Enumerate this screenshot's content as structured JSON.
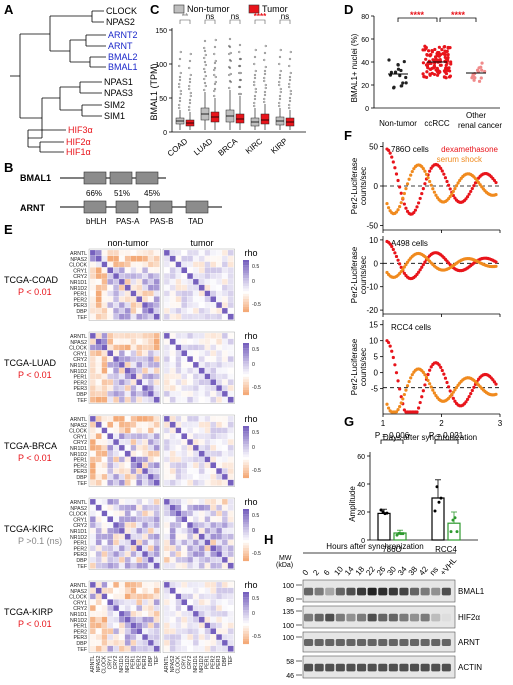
{
  "panel_letters": {
    "a": "A",
    "b": "B",
    "c": "C",
    "d": "D",
    "e": "E",
    "f": "F",
    "g": "G",
    "h": "H"
  },
  "panel_a": {
    "leaves": [
      {
        "label": "CLOCK",
        "color": "#000000"
      },
      {
        "label": "NPAS2",
        "color": "#000000"
      },
      {
        "label": "ARNT2",
        "color": "#1a27c9"
      },
      {
        "label": "ARNT",
        "color": "#1a27c9"
      },
      {
        "label": "BMAL2",
        "color": "#1a27c9"
      },
      {
        "label": "BMAL1",
        "color": "#1a27c9"
      },
      {
        "label": "NPAS1",
        "color": "#000000"
      },
      {
        "label": "NPAS3",
        "color": "#000000"
      },
      {
        "label": "SIM2",
        "color": "#000000"
      },
      {
        "label": "SIM1",
        "color": "#000000"
      },
      {
        "label": "HIF3α",
        "color": "#e8141b"
      },
      {
        "label": "HIF2α",
        "color": "#e8141b"
      },
      {
        "label": "HIF1α",
        "color": "#e8141b"
      }
    ]
  },
  "panel_b": {
    "protein1": "BMAL1",
    "protein2": "ARNT",
    "identity": [
      "66%",
      "51%",
      "45%"
    ],
    "domains": [
      "bHLH",
      "PAS-A",
      "PAS-B",
      "TAD"
    ]
  },
  "panel_c": {
    "legend": [
      "Non-tumor",
      "Tumor"
    ],
    "ylabel": "BMAL1 (TPM)",
    "categories": [
      "COAD",
      "LUAD",
      "BRCA",
      "KIRC",
      "KIRP"
    ],
    "significance": [
      "**",
      "ns",
      "ns",
      "****",
      "ns"
    ],
    "yticks": [
      "0",
      "50",
      "100",
      "150"
    ],
    "colors": {
      "nontumor": "#bfbfbf",
      "tumor": "#e8141b"
    }
  },
  "panel_d": {
    "ylabel": "BMAL1+ nuclei (%)",
    "categories": [
      "Non-tumor",
      "ccRCC",
      "Other\nrenal cancer"
    ],
    "yticks": [
      "0",
      "20",
      "40",
      "60",
      "80"
    ],
    "significance": [
      "****",
      "****"
    ]
  },
  "panel_e": {
    "col_headers": [
      "non-tumor",
      "tumor"
    ],
    "genes": [
      "ARNTL",
      "NPAS2",
      "CLOCK",
      "CRY1",
      "CRY2",
      "NR1D1",
      "NR1D2",
      "PER1",
      "PER2",
      "PER3",
      "DBP",
      "TEF"
    ],
    "legend_title": "rho",
    "legend_ticks": [
      "0.5",
      "0",
      "-0.5"
    ],
    "rows": [
      {
        "name": "TCGA-COAD",
        "p": "P < 0.01",
        "pcolor": "#e8141b"
      },
      {
        "name": "TCGA-LUAD",
        "p": "P < 0.01",
        "pcolor": "#e8141b"
      },
      {
        "name": "TCGA-BRCA",
        "p": "P < 0.01",
        "pcolor": "#e8141b"
      },
      {
        "name": "TCGA-KIRC",
        "p": "P >0.1 (ns)",
        "pcolor": "#888888"
      },
      {
        "name": "TCGA-KIRP",
        "p": "P < 0.01",
        "pcolor": "#e8141b"
      }
    ]
  },
  "panel_f": {
    "ylabel": "Per2-Luciferase counts/sec",
    "cells": [
      "786O cells",
      "A498 cells",
      "RCC4 cells"
    ],
    "legend": [
      "dexamethasone",
      "serum shock"
    ],
    "legend_colors": [
      "#e8141b",
      "#f08a1e"
    ],
    "yticks": [
      [
        "50",
        "0",
        "-50"
      ],
      [
        "10",
        "0",
        "-10",
        "-20"
      ],
      [
        "15",
        "10",
        "5",
        "0",
        "-5"
      ]
    ],
    "xticks": [
      "1",
      "2",
      "3"
    ],
    "xlabel": "Days after synchronization"
  },
  "panel_g": {
    "ylabel": "Amplitude",
    "pvals": [
      "P = 0.006",
      "P = 0.021"
    ],
    "categories": [
      "786O",
      "RCC4"
    ],
    "yticks": [
      "0",
      "20",
      "40",
      "60"
    ]
  },
  "panel_h": {
    "title": "Hours after synchronization",
    "mw_title": "MW\n(kDa)",
    "lanes": [
      "0",
      "2",
      "6",
      "10",
      "14",
      "18",
      "22",
      "26",
      "30",
      "34",
      "38",
      "42",
      "ns",
      "+VHL"
    ],
    "blots": [
      {
        "label": "BMAL1",
        "mw": [
          "100",
          "80"
        ]
      },
      {
        "label": "HIF2α",
        "mw": [
          "135",
          "100"
        ]
      },
      {
        "label": "ARNT",
        "mw": [
          "100"
        ]
      },
      {
        "label": "ACTIN",
        "mw": [
          "58",
          "46"
        ]
      }
    ]
  }
}
